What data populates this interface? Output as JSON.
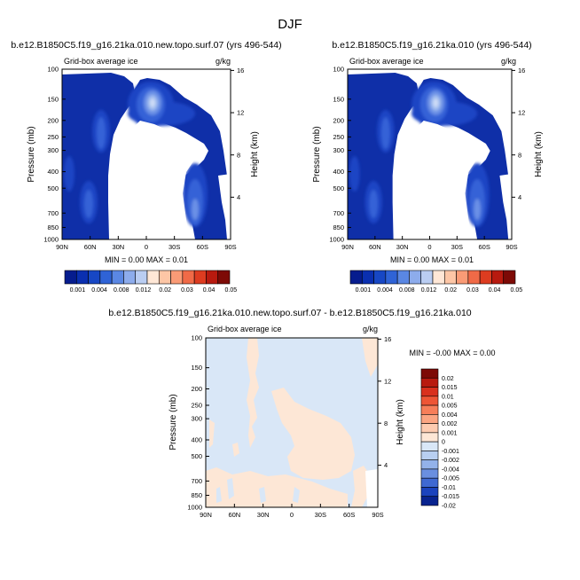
{
  "figure_title": "DJF",
  "chart_data": [
    {
      "type": "contour",
      "title": "b.e12.B1850C5.f19_g16.21ka.010.new.topo.surf.07 (yrs 496-544)",
      "subtitle_left": "Grid-box average ice",
      "subtitle_right": "g/kg",
      "ylabel": "Pressure (mb)",
      "ylabel_right": "Height (km)",
      "x_ticks": [
        "90N",
        "60N",
        "30N",
        "0",
        "30S",
        "60S",
        "90S"
      ],
      "y_ticks": [
        "100",
        "150",
        "200",
        "250",
        "300",
        "400",
        "500",
        "700",
        "850",
        "1000"
      ],
      "y_right_ticks": [
        "16",
        "12",
        "8",
        "4"
      ],
      "stats": "MIN =   0.00  MAX =   0.01",
      "colorbar_labels": [
        "0.001",
        "0.004",
        "0.008",
        "0.012",
        "0.02",
        "0.03",
        "0.04",
        "0.05"
      ]
    },
    {
      "type": "contour",
      "title": "b.e12.B1850C5.f19_g16.21ka.010 (yrs 496-544)",
      "subtitle_left": "Grid-box average ice",
      "subtitle_right": "g/kg",
      "ylabel": "Pressure (mb)",
      "ylabel_right": "Height (km)",
      "x_ticks": [
        "90N",
        "60N",
        "30N",
        "0",
        "30S",
        "60S",
        "90S"
      ],
      "y_ticks": [
        "100",
        "150",
        "200",
        "250",
        "300",
        "400",
        "500",
        "700",
        "850",
        "1000"
      ],
      "y_right_ticks": [
        "16",
        "12",
        "8",
        "4"
      ],
      "stats": "MIN =   0.00  MAX =   0.01",
      "colorbar_labels": [
        "0.001",
        "0.004",
        "0.008",
        "0.012",
        "0.02",
        "0.03",
        "0.04",
        "0.05"
      ]
    },
    {
      "type": "contour",
      "title": "b.e12.B1850C5.f19_g16.21ka.010.new.topo.surf.07 - b.e12.B1850C5.f19_g16.21ka.010",
      "subtitle_left": "Grid-box average ice",
      "subtitle_right": "g/kg",
      "ylabel": "Pressure (mb)",
      "ylabel_right": "Height (km)",
      "x_ticks": [
        "90N",
        "60N",
        "30N",
        "0",
        "30S",
        "60S",
        "90S"
      ],
      "y_ticks": [
        "100",
        "150",
        "200",
        "250",
        "300",
        "400",
        "500",
        "700",
        "850",
        "1000"
      ],
      "y_right_ticks": [
        "16",
        "12",
        "8",
        "4"
      ],
      "stats": "MIN =  -0.00  MAX =   0.00",
      "colorbar_labels": [
        "0.02",
        "0.015",
        "0.01",
        "0.005",
        "0.004",
        "0.002",
        "0.001",
        "0",
        "-0.001",
        "-0.002",
        "-0.004",
        "-0.005",
        "-0.01",
        "-0.015",
        "-0.02"
      ]
    }
  ],
  "colors": {
    "seq_palette": [
      "#061c8e",
      "#0a2fb0",
      "#1747c4",
      "#2f63d6",
      "#5a87e3",
      "#8dacec",
      "#bacdf2",
      "#ffe7d6",
      "#fdc6a6",
      "#fa9b76",
      "#f06a47",
      "#dd3c20",
      "#b81a0f",
      "#7d0a06"
    ],
    "div_palette": [
      "#7d0a06",
      "#b81a0f",
      "#d9301d",
      "#ee5535",
      "#f77e59",
      "#fba582",
      "#fdcbb0",
      "#fde7d6",
      "#d9e7f7",
      "#b8cff1",
      "#93b2ea",
      "#6a8fe0",
      "#3f69d2",
      "#1b43bd",
      "#08238f"
    ]
  }
}
